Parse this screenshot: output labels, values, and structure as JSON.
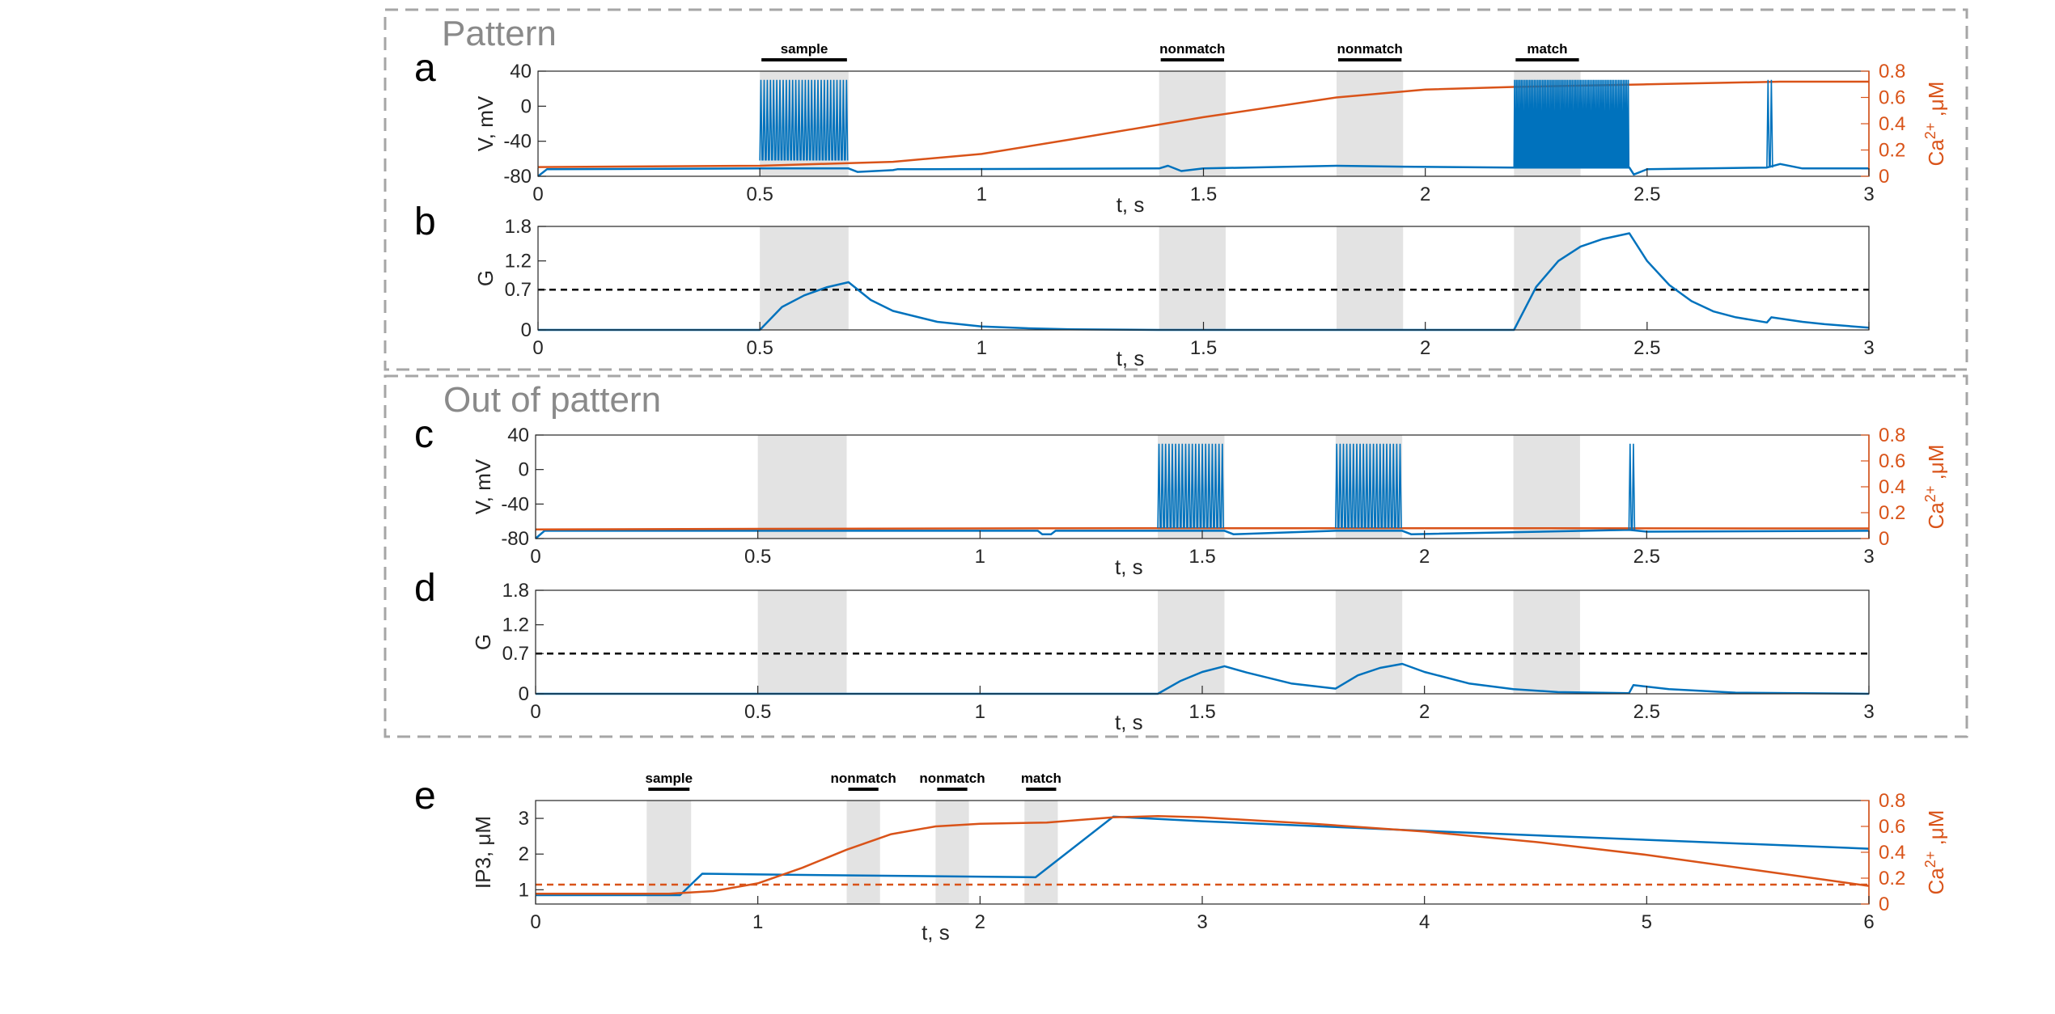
{
  "colors": {
    "voltage": "#0072BD",
    "calcium": "#D95319",
    "shade": "#e3e3e3",
    "threshold": "#000000",
    "box": "#a6a6a6"
  },
  "groups": {
    "pattern_title": "Pattern",
    "out_of_pattern_title": "Out of pattern"
  },
  "labels": {
    "xlabel": "t, s",
    "v_label": "V, mV",
    "g_label": "G",
    "ip3_label": "IP3, μM",
    "ca_label_main": "Ca",
    "ca_label_sup": "2+",
    "ca_label_unit": " ,μM"
  },
  "chart_data": [
    {
      "panel": "a",
      "type": "line",
      "title": "",
      "xlabel": "t, s",
      "ylabel": "V, mV",
      "y2label": "Ca2+ ,μM",
      "xlim": [
        0,
        3
      ],
      "ylim": [
        -80,
        40
      ],
      "y2lim": [
        0,
        0.8
      ],
      "xticks": [
        "0",
        "0.5",
        "1",
        "1.5",
        "2",
        "2.5",
        "3"
      ],
      "yticks": [
        "-80",
        "-40",
        "0",
        "40"
      ],
      "y2ticks": [
        "0",
        "0.2",
        "0.4",
        "0.6",
        "0.8"
      ],
      "stimuli": [
        {
          "label": "sample",
          "start": 0.5,
          "end": 0.7
        },
        {
          "label": "nonmatch",
          "start": 1.4,
          "end": 1.55
        },
        {
          "label": "nonmatch",
          "start": 1.8,
          "end": 1.95
        },
        {
          "label": "match",
          "start": 2.2,
          "end": 2.35
        }
      ],
      "spike_trains": [
        {
          "start": 0.5,
          "end": 0.7,
          "count": 28,
          "peak": 30,
          "trough": -62
        },
        {
          "start": 2.2,
          "end": 2.46,
          "count": 70,
          "peak": 30,
          "trough": -70
        },
        {
          "start": 2.77,
          "end": 2.785,
          "count": 2,
          "peak": 30,
          "trough": -70
        }
      ],
      "series": [
        {
          "name": "V",
          "axis": "left",
          "x": [
            0,
            0.02,
            0.5,
            0.7,
            0.72,
            0.8,
            0.81,
            0.83,
            1.4,
            1.42,
            1.45,
            1.5,
            1.8,
            1.95,
            2.2,
            2.46,
            2.47,
            2.5,
            2.77,
            2.8,
            2.85,
            3.0
          ],
          "values": [
            -80,
            -72,
            -71,
            -71,
            -75,
            -73,
            -72,
            -72,
            -71,
            -68,
            -74,
            -71,
            -68,
            -69,
            -70,
            -70,
            -78,
            -72,
            -70,
            -66,
            -71,
            -71
          ]
        },
        {
          "name": "Ca2+",
          "axis": "right",
          "x": [
            0,
            0.5,
            0.8,
            1.0,
            1.2,
            1.5,
            1.8,
            2.0,
            2.2,
            2.5,
            2.8,
            3.0
          ],
          "values": [
            0.07,
            0.08,
            0.11,
            0.17,
            0.28,
            0.45,
            0.6,
            0.66,
            0.68,
            0.7,
            0.72,
            0.72
          ]
        }
      ]
    },
    {
      "panel": "b",
      "type": "line",
      "title": "",
      "xlabel": "t, s",
      "ylabel": "G",
      "xlim": [
        0,
        3
      ],
      "ylim": [
        0,
        1.8
      ],
      "xticks": [
        "0",
        "0.5",
        "1",
        "1.5",
        "2",
        "2.5",
        "3"
      ],
      "yticks": [
        "0",
        "0.7",
        "1.2",
        "1.8"
      ],
      "threshold": 0.7,
      "stimuli": [
        {
          "start": 0.5,
          "end": 0.7
        },
        {
          "start": 1.4,
          "end": 1.55
        },
        {
          "start": 1.8,
          "end": 1.95
        },
        {
          "start": 2.2,
          "end": 2.35
        }
      ],
      "series": [
        {
          "name": "G",
          "x": [
            0,
            0.5,
            0.55,
            0.6,
            0.65,
            0.7,
            0.75,
            0.8,
            0.9,
            1.0,
            1.1,
            1.2,
            1.4,
            2.2,
            2.25,
            2.3,
            2.35,
            2.4,
            2.46,
            2.5,
            2.55,
            2.6,
            2.65,
            2.7,
            2.77,
            2.78,
            2.85,
            2.9,
            3.0
          ],
          "values": [
            0,
            0,
            0.4,
            0.6,
            0.74,
            0.83,
            0.52,
            0.33,
            0.14,
            0.06,
            0.03,
            0.01,
            0,
            0,
            0.75,
            1.2,
            1.45,
            1.58,
            1.68,
            1.2,
            0.78,
            0.5,
            0.32,
            0.22,
            0.13,
            0.22,
            0.14,
            0.1,
            0.04
          ]
        }
      ]
    },
    {
      "panel": "c",
      "type": "line",
      "title": "",
      "xlabel": "t, s",
      "ylabel": "V, mV",
      "y2label": "Ca2+ ,μM",
      "xlim": [
        0,
        3
      ],
      "ylim": [
        -80,
        40
      ],
      "y2lim": [
        0,
        0.8
      ],
      "xticks": [
        "0",
        "0.5",
        "1",
        "1.5",
        "2",
        "2.5",
        "3"
      ],
      "yticks": [
        "-80",
        "-40",
        "0",
        "40"
      ],
      "y2ticks": [
        "0",
        "0.2",
        "0.4",
        "0.6",
        "0.8"
      ],
      "stimuli": [
        {
          "start": 0.5,
          "end": 0.7
        },
        {
          "start": 1.4,
          "end": 1.55
        },
        {
          "start": 1.8,
          "end": 1.95
        },
        {
          "start": 2.2,
          "end": 2.35
        }
      ],
      "spike_trains": [
        {
          "start": 1.4,
          "end": 1.55,
          "count": 20,
          "peak": 30,
          "trough": -68
        },
        {
          "start": 1.8,
          "end": 1.95,
          "count": 20,
          "peak": 30,
          "trough": -68
        },
        {
          "start": 2.46,
          "end": 2.475,
          "count": 2,
          "peak": 30,
          "trough": -70
        }
      ],
      "series": [
        {
          "name": "V",
          "axis": "left",
          "x": [
            0,
            0.02,
            1.13,
            1.14,
            1.16,
            1.17,
            1.4,
            1.55,
            1.57,
            1.8,
            1.95,
            1.97,
            2.46,
            2.5,
            3.0
          ],
          "values": [
            -80,
            -71,
            -71,
            -75,
            -75,
            -71,
            -71,
            -71,
            -75,
            -71,
            -71,
            -75,
            -70,
            -72,
            -71
          ]
        },
        {
          "name": "Ca2+",
          "axis": "right",
          "x": [
            0,
            0.5,
            1.0,
            1.5,
            2.0,
            2.5,
            3.0
          ],
          "values": [
            0.07,
            0.075,
            0.078,
            0.08,
            0.08,
            0.079,
            0.078
          ]
        }
      ]
    },
    {
      "panel": "d",
      "type": "line",
      "title": "",
      "xlabel": "t, s",
      "ylabel": "G",
      "xlim": [
        0,
        3
      ],
      "ylim": [
        0,
        1.8
      ],
      "xticks": [
        "0",
        "0.5",
        "1",
        "1.5",
        "2",
        "2.5",
        "3"
      ],
      "yticks": [
        "0",
        "0.7",
        "1.2",
        "1.8"
      ],
      "threshold": 0.7,
      "stimuli": [
        {
          "start": 0.5,
          "end": 0.7
        },
        {
          "start": 1.4,
          "end": 1.55
        },
        {
          "start": 1.8,
          "end": 1.95
        },
        {
          "start": 2.2,
          "end": 2.35
        }
      ],
      "series": [
        {
          "name": "G",
          "x": [
            0,
            1.4,
            1.45,
            1.5,
            1.55,
            1.6,
            1.7,
            1.8,
            1.85,
            1.9,
            1.95,
            2.0,
            2.1,
            2.2,
            2.3,
            2.46,
            2.47,
            2.55,
            2.7,
            3.0
          ],
          "values": [
            0,
            0,
            0.22,
            0.38,
            0.48,
            0.37,
            0.18,
            0.09,
            0.32,
            0.45,
            0.52,
            0.38,
            0.18,
            0.08,
            0.03,
            0.01,
            0.15,
            0.08,
            0.02,
            0
          ]
        }
      ]
    },
    {
      "panel": "e",
      "type": "line",
      "title": "",
      "xlabel": "t, s",
      "ylabel": "IP3, μM",
      "y2label": "Ca2+ ,μM",
      "xlim": [
        0,
        6
      ],
      "ylim": [
        0.6,
        3.5
      ],
      "y2lim": [
        0,
        0.8
      ],
      "xticks": [
        "0",
        "1",
        "2",
        "3",
        "4",
        "5",
        "6"
      ],
      "yticks": [
        "1",
        "2",
        "3"
      ],
      "y2ticks": [
        "0",
        "0.2",
        "0.4",
        "0.6",
        "0.8"
      ],
      "stimuli": [
        {
          "label": "sample",
          "start": 0.5,
          "end": 0.7
        },
        {
          "label": "nonmatch",
          "start": 1.4,
          "end": 1.55
        },
        {
          "label": "nonmatch",
          "start": 1.8,
          "end": 1.95
        },
        {
          "label": "match",
          "start": 2.2,
          "end": 2.35
        }
      ],
      "threshold_ca": 0.15,
      "series": [
        {
          "name": "IP3",
          "axis": "left",
          "x": [
            0,
            0.65,
            0.75,
            1.0,
            2.25,
            2.6,
            3.0,
            4.0,
            5.0,
            6.0
          ],
          "values": [
            0.85,
            0.85,
            1.45,
            1.43,
            1.35,
            3.05,
            2.92,
            2.65,
            2.4,
            2.15
          ]
        },
        {
          "name": "Ca2+",
          "axis": "right",
          "x": [
            0,
            0.6,
            0.8,
            1.0,
            1.2,
            1.4,
            1.6,
            1.8,
            2.0,
            2.3,
            2.6,
            2.8,
            3.0,
            3.5,
            4.0,
            4.5,
            5.0,
            5.5,
            6.0
          ],
          "values": [
            0.08,
            0.08,
            0.1,
            0.16,
            0.28,
            0.42,
            0.54,
            0.6,
            0.62,
            0.63,
            0.67,
            0.68,
            0.67,
            0.62,
            0.56,
            0.48,
            0.38,
            0.26,
            0.14
          ]
        }
      ]
    }
  ]
}
